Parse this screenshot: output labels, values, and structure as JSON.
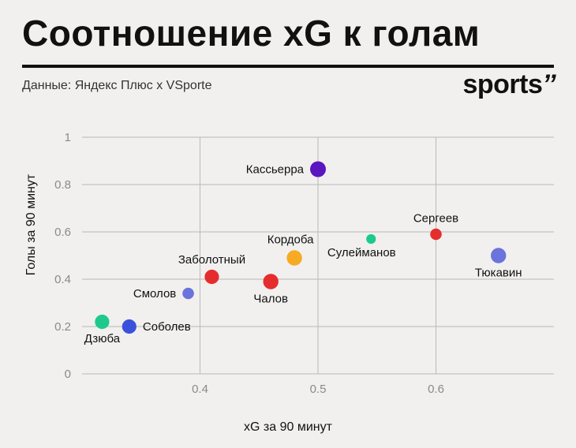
{
  "title": "Соотношение xG к голам",
  "subtitle": "Данные: Яндекс Плюс x VSporte",
  "logo": {
    "text": "sports",
    "mark": "’’"
  },
  "chart_data": {
    "type": "scatter",
    "xlabel": "xG за 90 минут",
    "ylabel": "Голы за 90 минут",
    "xlim": [
      0.3,
      0.7
    ],
    "ylim": [
      0,
      1
    ],
    "xticks": [
      "0.4",
      "0.5",
      "0.6"
    ],
    "yticks": [
      "0",
      "0.2",
      "0.4",
      "0.6",
      "0.8",
      "1"
    ],
    "grid": true,
    "points": [
      {
        "name": "Кассьерра",
        "x": 0.5,
        "y": 0.865,
        "size": 1.0,
        "color": "#5a16bf",
        "label_pos": "left"
      },
      {
        "name": "Сергеев",
        "x": 0.6,
        "y": 0.59,
        "size": 0.55,
        "color": "#e52d2d",
        "label_pos": "top"
      },
      {
        "name": "Сулейманов",
        "x": 0.545,
        "y": 0.57,
        "size": 0.35,
        "color": "#1ec98e",
        "label_pos": "bottom-left"
      },
      {
        "name": "Тюкавин",
        "x": 0.653,
        "y": 0.5,
        "size": 0.95,
        "color": "#6b74db",
        "label_pos": "bottom"
      },
      {
        "name": "Кордоба",
        "x": 0.48,
        "y": 0.49,
        "size": 0.95,
        "color": "#f7ab24",
        "label_pos": "top-left"
      },
      {
        "name": "Заболотный",
        "x": 0.41,
        "y": 0.41,
        "size": 0.85,
        "color": "#e52d2d",
        "label_pos": "top"
      },
      {
        "name": "Чалов",
        "x": 0.46,
        "y": 0.39,
        "size": 0.95,
        "color": "#e52d2d",
        "label_pos": "bottom"
      },
      {
        "name": "Смолов",
        "x": 0.39,
        "y": 0.34,
        "size": 0.55,
        "color": "#6b74db",
        "label_pos": "left"
      },
      {
        "name": "Дзюба",
        "x": 0.317,
        "y": 0.22,
        "size": 0.85,
        "color": "#1ec98e",
        "label_pos": "bottom"
      },
      {
        "name": "Соболев",
        "x": 0.34,
        "y": 0.2,
        "size": 0.85,
        "color": "#3a52db",
        "label_pos": "right"
      }
    ]
  }
}
